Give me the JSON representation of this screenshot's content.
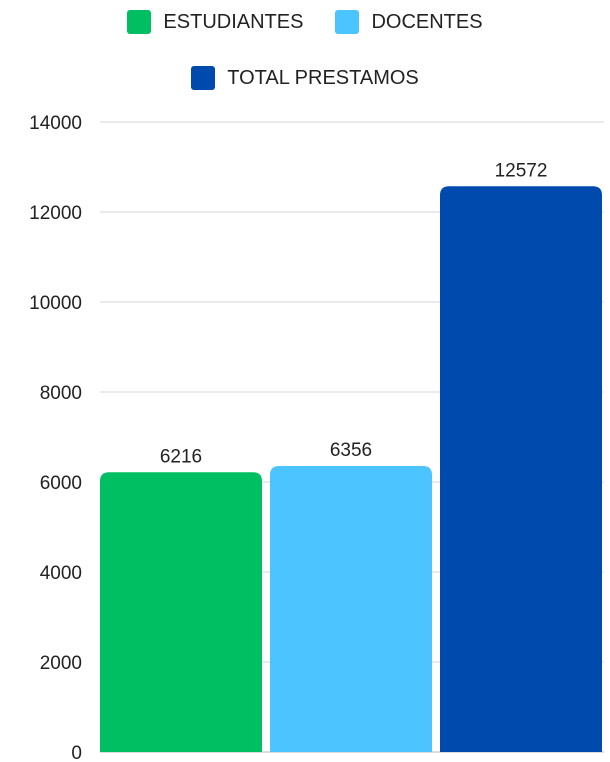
{
  "chart_data": {
    "type": "bar",
    "title": "",
    "xlabel": "",
    "ylabel": "",
    "categories": [
      ""
    ],
    "series": [
      {
        "name": "ESTUDIANTES",
        "values": [
          6216
        ],
        "color": "#00BF63"
      },
      {
        "name": "DOCENTES",
        "values": [
          6356
        ],
        "color": "#4CC4FF"
      },
      {
        "name": "TOTAL PRESTAMOS",
        "values": [
          12572
        ],
        "color": "#004AAD"
      }
    ],
    "ylim": [
      0,
      14000
    ],
    "yticks": [
      "0",
      "2000",
      "4000",
      "6000",
      "8000",
      "10000",
      "12000",
      "14000"
    ],
    "grid": true,
    "legend": "top-center",
    "data_labels": [
      "6216",
      "6356",
      "12572"
    ]
  }
}
